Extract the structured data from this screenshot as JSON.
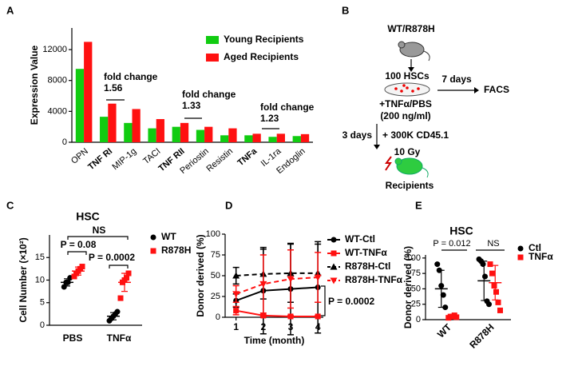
{
  "panels": [
    "A",
    "B",
    "C",
    "D",
    "E"
  ],
  "diagram": {
    "strain": "WT/R878H",
    "cells": "100 HSCs",
    "culture_time": "7 days",
    "readout": "FACS",
    "treatment": "+TNFα/PBS",
    "dose": "(200 ng/ml)",
    "transplant_time": "3 days",
    "competitors": "+ 300K CD45.1",
    "irradiation": "10 Gy",
    "recipients": "Recipients"
  },
  "chart_data": [
    {
      "type": "bar",
      "y_label": "Expression Value",
      "categories": [
        "OPN",
        "TNF RI",
        "MIP-1g",
        "TACI",
        "TNF RII",
        "Periostin",
        "Resistin",
        "TNFa",
        "IL-1ra",
        "Endoglin"
      ],
      "series": [
        {
          "name": "Young Recipients",
          "color": "#11cc11",
          "values": [
            9500,
            3300,
            2500,
            1800,
            2000,
            1600,
            900,
            900,
            700,
            800
          ]
        },
        {
          "name": "Aged Recipients",
          "color": "#ff1111",
          "values": [
            13000,
            5000,
            4300,
            3000,
            2500,
            2000,
            1800,
            1100,
            1100,
            1050
          ]
        }
      ],
      "ylim": [
        0,
        14800
      ],
      "yticks": [
        0,
        4000,
        8000,
        12000
      ],
      "annotations": [
        {
          "label": "fold change",
          "value": 1.56
        },
        {
          "label": "fold change",
          "value": 1.33
        },
        {
          "label": "fold change",
          "value": 1.23
        }
      ]
    },
    {
      "type": "dot",
      "title": "HSC",
      "y_label": "Cell Number (×10²)",
      "categories": [
        "PBS",
        "TNFα"
      ],
      "series": [
        {
          "name": "WT",
          "color": "#000000",
          "marker": "circle",
          "values": [
            [
              8.5,
              9.5,
              9.5,
              10.5
            ],
            [
              1,
              1.5,
              2,
              2.5,
              3
            ]
          ],
          "means": [
            9.5,
            2
          ],
          "errors": [
            0.8,
            0.8
          ]
        },
        {
          "name": "R878H",
          "color": "#ff1111",
          "marker": "square",
          "values": [
            [
              10.8,
              11.5,
              12,
              12.5,
              13
            ],
            [
              6,
              9.5,
              10,
              10.5,
              11.5
            ]
          ],
          "means": [
            12,
            9.5
          ],
          "errors": [
            0.9,
            2
          ]
        }
      ],
      "ylim": [
        0,
        20
      ],
      "yticks": [
        0,
        5,
        10,
        15
      ],
      "annotations": [
        "P = 0.08",
        "NS",
        "P = 0.0002"
      ]
    },
    {
      "type": "line",
      "x_label": "Time (month)",
      "y_label": "Donor derived (%)",
      "x": [
        1,
        2,
        3,
        4
      ],
      "series": [
        {
          "name": "WT-Ctl",
          "color": "#000000",
          "marker": "circle",
          "dashed": false,
          "values": [
            20,
            32,
            34,
            36
          ],
          "errors": [
            8,
            52,
            55,
            55
          ]
        },
        {
          "name": "WT-TNFα",
          "color": "#ff1111",
          "marker": "square",
          "dashed": false,
          "values": [
            8,
            2,
            1,
            1
          ],
          "errors": [
            5,
            1,
            1,
            1
          ]
        },
        {
          "name": "R878H-Ctl",
          "color": "#000000",
          "marker": "triangle",
          "dashed": true,
          "values": [
            50,
            52,
            53,
            53
          ],
          "errors": [
            10,
            30,
            35,
            35
          ]
        },
        {
          "name": "R878H-TNFα",
          "color": "#ff1111",
          "marker": "triangle-down",
          "dashed": true,
          "values": [
            28,
            40,
            46,
            48
          ],
          "errors": [
            10,
            35,
            35,
            30
          ]
        }
      ],
      "xlim": [
        0.6,
        4.2
      ],
      "xticks": [
        1,
        2,
        3,
        4
      ],
      "ylim": [
        0,
        100
      ],
      "yticks": [
        0,
        25,
        50,
        75,
        100
      ],
      "annotations": [
        "P = 0.0002"
      ]
    },
    {
      "type": "dot",
      "title": "HSC",
      "y_label": "Donor derived (%)",
      "categories": [
        "WT",
        "R878H"
      ],
      "series": [
        {
          "name": "Ctl",
          "color": "#000000",
          "marker": "circle",
          "values": [
            [
              90,
              80,
              55,
              40,
              20
            ],
            [
              98,
              95,
              90,
              70,
              30,
              25
            ]
          ],
          "means": [
            50,
            63
          ],
          "errors": [
            30,
            32
          ]
        },
        {
          "name": "TNFα",
          "color": "#ff1111",
          "marker": "square",
          "values": [
            [
              3,
              5,
              5,
              7,
              4
            ],
            [
              90,
              75,
              55,
              45,
              28,
              15
            ]
          ],
          "means": [
            5,
            60
          ],
          "errors": [
            2,
            28
          ]
        }
      ],
      "ylim": [
        0,
        105
      ],
      "yticks": [
        0,
        25,
        50,
        75,
        100
      ],
      "annotations": [
        "P = 0.012",
        "NS"
      ]
    }
  ]
}
